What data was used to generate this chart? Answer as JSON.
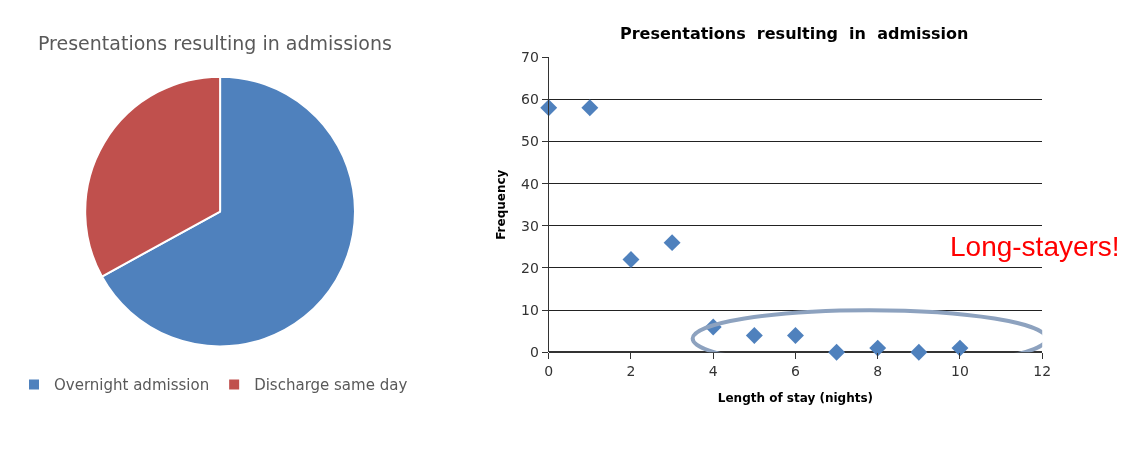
{
  "chart_data": [
    {
      "type": "pie",
      "title": "Presentations resulting in admissions",
      "categories": [
        "Overnight admission",
        "Discharge same day"
      ],
      "values": [
        67,
        33
      ],
      "colors": [
        "#4f81bd",
        "#c0504d"
      ],
      "legend": "bottom"
    },
    {
      "type": "scatter",
      "title": "Presentations  resulting  in  admission",
      "xlabel": "Length of stay (nights)",
      "ylabel": "Frequency",
      "x": [
        0,
        1,
        2,
        3,
        4,
        5,
        6,
        7,
        8,
        9,
        10
      ],
      "series": [
        {
          "color": "#4f81bd",
          "values": [
            58,
            58,
            22,
            26,
            6,
            4,
            4,
            0,
            1,
            0,
            1
          ]
        }
      ],
      "xlim": [
        0,
        12
      ],
      "xticks": [
        0,
        2,
        4,
        6,
        8,
        10,
        12
      ],
      "ylim": [
        0,
        70
      ],
      "yticks": [
        0,
        10,
        20,
        30,
        40,
        50,
        60,
        70
      ],
      "grid": "y",
      "marker": "diamond",
      "annotations": [
        "Long-stayers!"
      ]
    }
  ]
}
